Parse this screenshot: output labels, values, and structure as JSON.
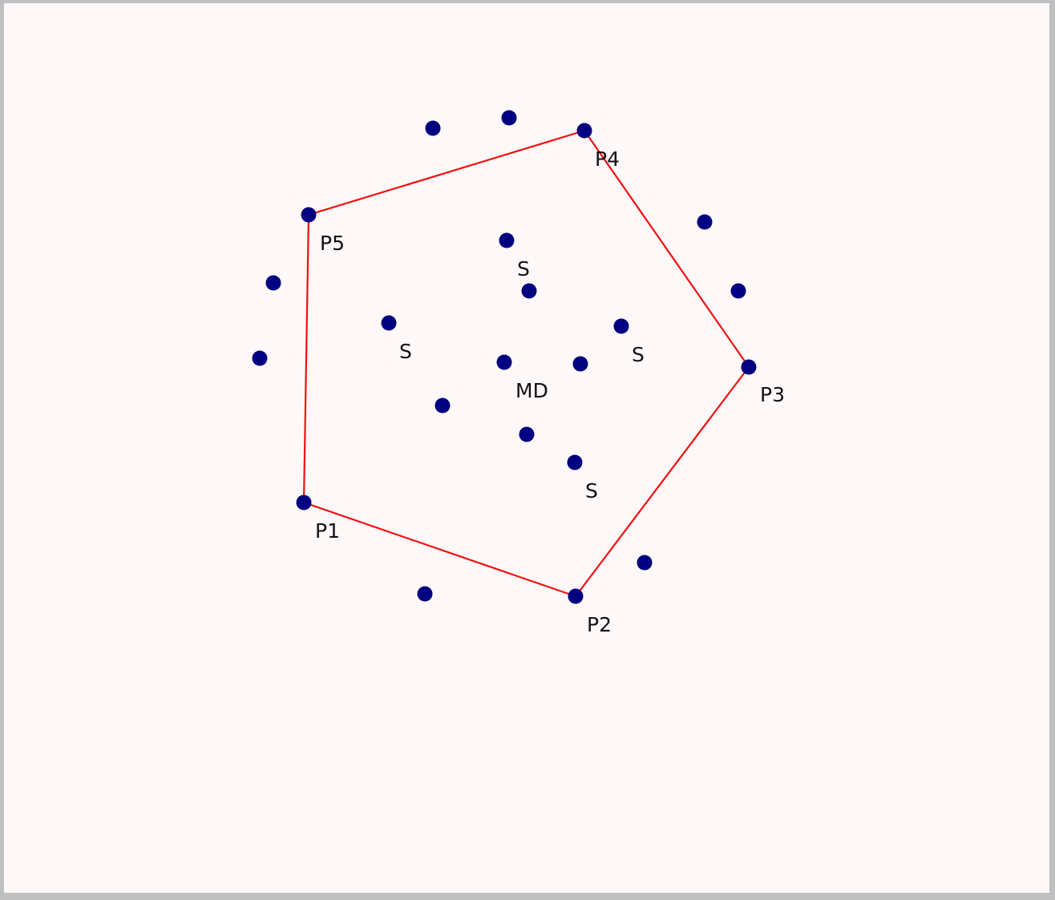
{
  "colors": {
    "background": "#fff8f8",
    "frame": "#c0c0c0",
    "point": "#000080",
    "polygon": "#ee1111",
    "label": "#111111"
  },
  "labels": {
    "p1": "P1",
    "p2": "P2",
    "p3": "P3",
    "p4": "P4",
    "p5": "P5",
    "center": "MD",
    "s_top": "S",
    "s_left": "S",
    "s_right": "S",
    "s_bottom": "S"
  }
}
